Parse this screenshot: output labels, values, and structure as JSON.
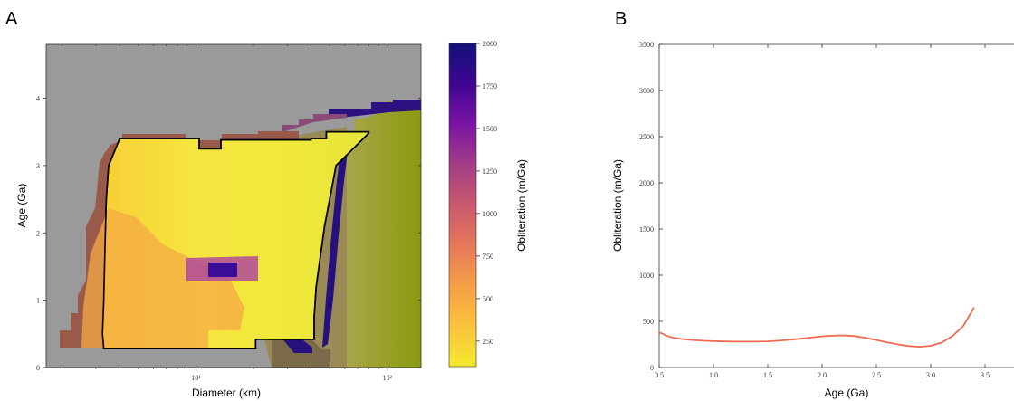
{
  "chart_data": [
    {
      "panel": "A",
      "type": "heatmap",
      "title": "",
      "xlabel": "Diameter (km)",
      "ylabel": "Age (Ga)",
      "xscale": "log",
      "xlim": [
        1.65,
        150
      ],
      "ylim": [
        0,
        4.8
      ],
      "x_ticks": [
        {
          "value": 10,
          "label": "10¹"
        },
        {
          "value": 100,
          "label": "10²"
        }
      ],
      "y_ticks": [
        0,
        1,
        2,
        3,
        4
      ],
      "background_color": "#9a9a9a",
      "colormap": "plasma_r",
      "colorbar": {
        "label": "Obliteration (m/Ga)",
        "range": [
          100,
          2000
        ],
        "ticks": [
          250,
          500,
          750,
          1000,
          1250,
          1500,
          1750,
          2000
        ],
        "colors": [
          "#f3ea2c",
          "#f9c23d",
          "#f69f45",
          "#e5785a",
          "#c9596d",
          "#a33e87",
          "#7a14a4",
          "#3e0691",
          "#14107a"
        ]
      },
      "boundary_color": "#000000",
      "regions": [
        {
          "name": "valid-domain",
          "color": "#f3e23c",
          "polygon": [
            [
              3.3,
              0.28
            ],
            [
              4.6,
              0.28
            ],
            [
              20.5,
              0.28
            ],
            [
              20.5,
              0.42
            ],
            [
              41.5,
              0.42
            ],
            [
              41.5,
              0.75
            ],
            [
              42.5,
              1.2
            ],
            [
              47,
              2.1
            ],
            [
              54,
              3.0
            ],
            [
              80,
              3.48
            ],
            [
              80,
              3.5
            ],
            [
              48,
              3.5
            ],
            [
              48,
              3.4
            ],
            [
              40,
              3.4
            ],
            [
              40,
              3.38
            ],
            [
              13.5,
              3.38
            ],
            [
              13.5,
              3.25
            ],
            [
              10.4,
              3.25
            ],
            [
              10.4,
              3.4
            ],
            [
              4.0,
              3.4
            ],
            [
              3.5,
              3.0
            ],
            [
              3.4,
              2.5
            ],
            [
              3.35,
              1.8
            ],
            [
              3.3,
              1.0
            ],
            [
              3.25,
              0.5
            ]
          ]
        }
      ]
    },
    {
      "panel": "B",
      "type": "line",
      "title": "",
      "xlabel": "Age (Ga)",
      "ylabel": "Obliteration (m/Ga)",
      "xlim": [
        0.5,
        4.0
      ],
      "ylim": [
        0,
        3500
      ],
      "x_ticks": [
        0.5,
        1.0,
        1.5,
        2.0,
        2.5,
        3.0,
        3.5
      ],
      "y_ticks": [
        0,
        500,
        1000,
        1500,
        2000,
        2500,
        3000,
        3500
      ],
      "series": [
        {
          "color": "#f06a50",
          "x": [
            0.5,
            0.6,
            0.7,
            0.8,
            0.9,
            1.0,
            1.1,
            1.2,
            1.3,
            1.4,
            1.5,
            1.6,
            1.7,
            1.8,
            1.9,
            2.0,
            2.1,
            2.2,
            2.3,
            2.4,
            2.5,
            2.6,
            2.7,
            2.8,
            2.9,
            3.0,
            3.1,
            3.2,
            3.3,
            3.4
          ],
          "y": [
            380,
            330,
            310,
            298,
            290,
            285,
            282,
            280,
            280,
            280,
            283,
            290,
            300,
            312,
            325,
            337,
            345,
            348,
            340,
            322,
            298,
            272,
            250,
            232,
            225,
            235,
            270,
            340,
            450,
            650
          ]
        }
      ]
    }
  ],
  "labels": {
    "panel_a": "A",
    "panel_b": "B",
    "xlabel_a": "Diameter (km)",
    "ylabel_a": "Age (Ga)",
    "colorbar_label": "Obliteration (m/Ga)",
    "xlabel_b": "Age (Ga)",
    "ylabel_b": "Obliteration (m/Ga)"
  }
}
